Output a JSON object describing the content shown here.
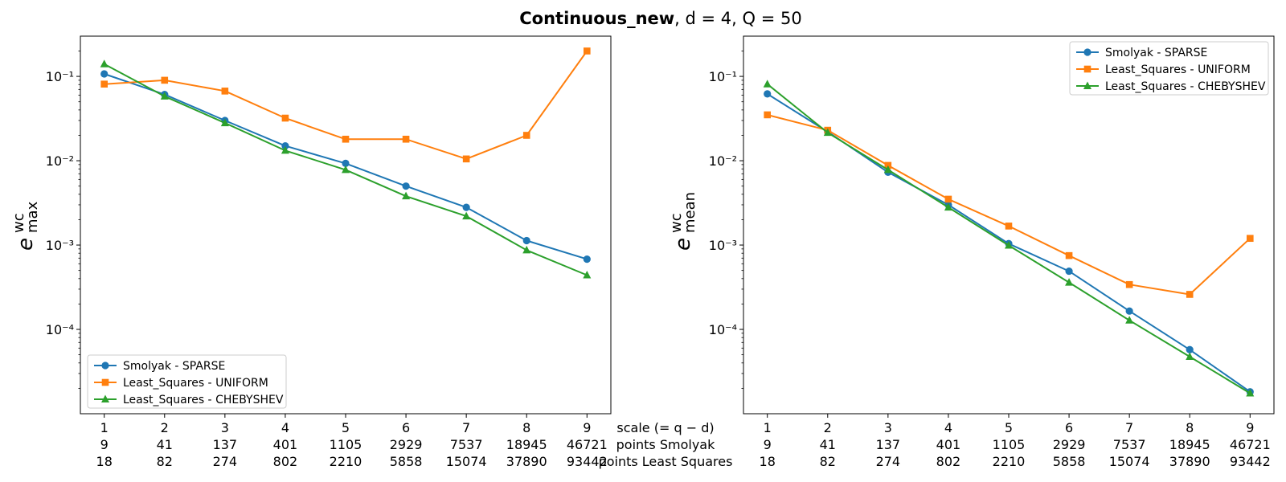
{
  "figure": {
    "title_bold": "Continuous_new",
    "title_rest": ", d = 4, Q = 50",
    "row_labels": [
      "scale (= q − d)",
      "points Smolyak",
      "points Least Squares"
    ]
  },
  "colors": {
    "sparse": "#1f77b4",
    "uniform": "#ff7f0e",
    "chebyshev": "#2ca02c"
  },
  "chart_data": [
    {
      "type": "line",
      "yscale": "log",
      "ylim": [
        1e-05,
        0.3
      ],
      "ylabel_base": "e",
      "ylabel_sup": "wc",
      "ylabel_sub": "max",
      "legend_position": "lower-left",
      "x": [
        1,
        2,
        3,
        4,
        5,
        6,
        7,
        8,
        9
      ],
      "x_ticklabels": [
        "1",
        "2",
        "3",
        "4",
        "5",
        "6",
        "7",
        "8",
        "9"
      ],
      "points_smolyak": [
        "9",
        "41",
        "137",
        "401",
        "1105",
        "2929",
        "7537",
        "18945",
        "46721"
      ],
      "points_least_squares": [
        "18",
        "82",
        "274",
        "802",
        "2210",
        "5858",
        "15074",
        "37890",
        "93442"
      ],
      "y_ticks": [
        {
          "value": 0.0001,
          "label": "10⁻⁴"
        },
        {
          "value": 0.001,
          "label": "10⁻³"
        },
        {
          "value": 0.01,
          "label": "10⁻²"
        },
        {
          "value": 0.1,
          "label": "10⁻¹"
        }
      ],
      "series": [
        {
          "name": "Smolyak - SPARSE",
          "marker": "circle",
          "color_key": "sparse",
          "values": [
            0.107,
            0.061,
            0.03,
            0.015,
            0.0093,
            0.005,
            0.0028,
            0.00113,
            0.00068
          ]
        },
        {
          "name": "Least_Squares - UNIFORM",
          "marker": "square",
          "color_key": "uniform",
          "values": [
            0.081,
            0.09,
            0.067,
            0.032,
            0.018,
            0.018,
            0.0105,
            0.02,
            0.2
          ]
        },
        {
          "name": "Least_Squares - CHEBYSHEV",
          "marker": "triangle",
          "color_key": "chebyshev",
          "values": [
            0.14,
            0.058,
            0.028,
            0.0132,
            0.0078,
            0.0038,
            0.0022,
            0.00087,
            0.00044
          ]
        }
      ]
    },
    {
      "type": "line",
      "yscale": "log",
      "ylim": [
        1e-05,
        0.3
      ],
      "ylabel_base": "e",
      "ylabel_sup": "wc",
      "ylabel_sub": "mean",
      "legend_position": "top-right",
      "x": [
        1,
        2,
        3,
        4,
        5,
        6,
        7,
        8,
        9
      ],
      "x_ticklabels": [
        "1",
        "2",
        "3",
        "4",
        "5",
        "6",
        "7",
        "8",
        "9"
      ],
      "points_smolyak": [
        "9",
        "41",
        "137",
        "401",
        "1105",
        "2929",
        "7537",
        "18945",
        "46721"
      ],
      "points_least_squares": [
        "18",
        "82",
        "274",
        "802",
        "2210",
        "5858",
        "15074",
        "37890",
        "93442"
      ],
      "y_ticks": [
        {
          "value": 0.0001,
          "label": "10⁻⁴"
        },
        {
          "value": 0.001,
          "label": "10⁻³"
        },
        {
          "value": 0.01,
          "label": "10⁻²"
        },
        {
          "value": 0.1,
          "label": "10⁻¹"
        }
      ],
      "series": [
        {
          "name": "Smolyak - SPARSE",
          "marker": "circle",
          "color_key": "sparse",
          "values": [
            0.062,
            0.022,
            0.0073,
            0.003,
            0.00104,
            0.00049,
            0.000165,
            5.75e-05,
            1.82e-05
          ]
        },
        {
          "name": "Least_Squares - UNIFORM",
          "marker": "square",
          "color_key": "uniform",
          "values": [
            0.035,
            0.023,
            0.0088,
            0.0035,
            0.00168,
            0.00075,
            0.00034,
            0.00026,
            0.0012
          ]
        },
        {
          "name": "Least_Squares - CHEBYSHEV",
          "marker": "triangle",
          "color_key": "chebyshev",
          "values": [
            0.081,
            0.0215,
            0.0078,
            0.0028,
            0.00099,
            0.00036,
            0.000128,
            4.75e-05,
            1.75e-05
          ]
        }
      ]
    }
  ]
}
